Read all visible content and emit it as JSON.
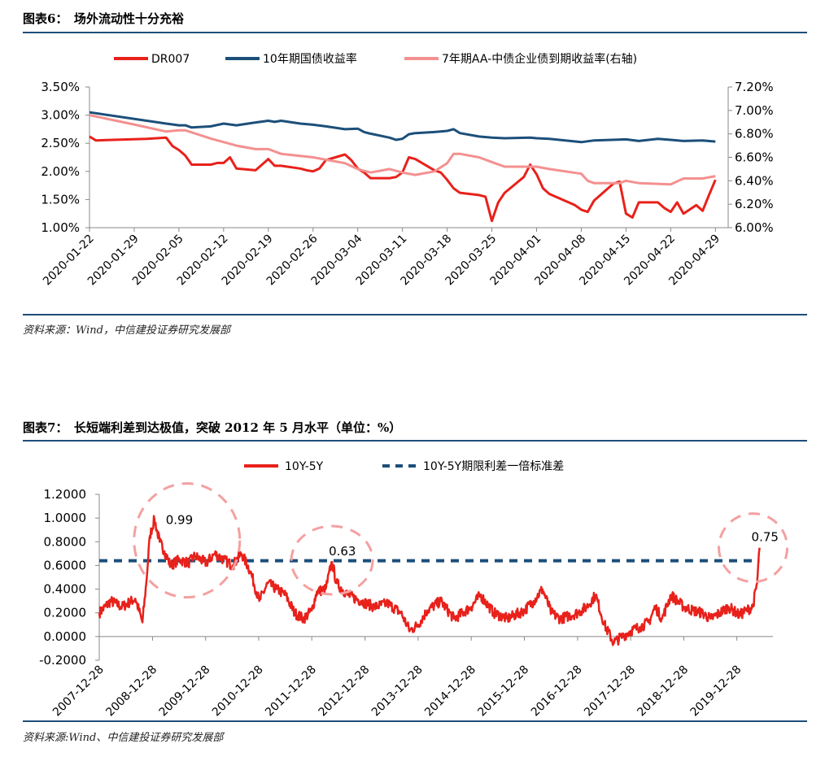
{
  "figure1": {
    "caption": "图表6：　场外流动性十分充裕",
    "source": "资料来源：Wind，中信建投证券研究发展部"
  },
  "figure2": {
    "caption": "图表7：　长短端利差到达极值，突破 2012 年 5 月水平（单位：%）",
    "source": "资料来源:Wind、中信建投证券研究发展部"
  },
  "chart_data": [
    {
      "type": "line",
      "title": "",
      "x_labels": [
        "2020-01-22",
        "2020-01-29",
        "2020-02-05",
        "2020-02-12",
        "2020-02-19",
        "2020-02-26",
        "2020-03-04",
        "2020-03-11",
        "2020-03-18",
        "2020-03-25",
        "2020-04-01",
        "2020-04-08",
        "2020-04-15",
        "2020-04-22",
        "2020-04-29"
      ],
      "x_range": [
        "2020-01-22",
        "2020-05-01"
      ],
      "y_left": {
        "min": 1.0,
        "max": 3.5,
        "ticks": [
          "1.00%",
          "1.50%",
          "2.00%",
          "2.50%",
          "3.00%",
          "3.50%"
        ]
      },
      "y_right": {
        "min": 6.0,
        "max": 7.2,
        "ticks": [
          "6.00%",
          "6.20%",
          "6.40%",
          "6.60%",
          "6.80%",
          "7.00%",
          "7.20%"
        ]
      },
      "legend_position": "top",
      "grid": false,
      "series": [
        {
          "name": "DR007",
          "axis": "left",
          "color": "#e8211b",
          "points": [
            [
              "2020-01-22",
              2.62
            ],
            [
              "2020-01-23",
              2.55
            ],
            [
              "2020-01-31",
              2.58
            ],
            [
              "2020-02-03",
              2.6
            ],
            [
              "2020-02-04",
              2.45
            ],
            [
              "2020-02-05",
              2.38
            ],
            [
              "2020-02-06",
              2.28
            ],
            [
              "2020-02-07",
              2.12
            ],
            [
              "2020-02-10",
              2.12
            ],
            [
              "2020-02-11",
              2.15
            ],
            [
              "2020-02-12",
              2.15
            ],
            [
              "2020-02-13",
              2.25
            ],
            [
              "2020-02-14",
              2.05
            ],
            [
              "2020-02-17",
              2.02
            ],
            [
              "2020-02-18",
              2.12
            ],
            [
              "2020-02-19",
              2.22
            ],
            [
              "2020-02-20",
              2.1
            ],
            [
              "2020-02-21",
              2.1
            ],
            [
              "2020-02-24",
              2.05
            ],
            [
              "2020-02-25",
              2.02
            ],
            [
              "2020-02-26",
              2.0
            ],
            [
              "2020-02-27",
              2.05
            ],
            [
              "2020-02-28",
              2.2
            ],
            [
              "2020-03-02",
              2.3
            ],
            [
              "2020-03-03",
              2.2
            ],
            [
              "2020-03-04",
              2.05
            ],
            [
              "2020-03-05",
              1.98
            ],
            [
              "2020-03-06",
              1.88
            ],
            [
              "2020-03-09",
              1.88
            ],
            [
              "2020-03-10",
              1.9
            ],
            [
              "2020-03-11",
              1.98
            ],
            [
              "2020-03-12",
              2.25
            ],
            [
              "2020-03-13",
              2.22
            ],
            [
              "2020-03-16",
              2.02
            ],
            [
              "2020-03-17",
              1.98
            ],
            [
              "2020-03-18",
              1.85
            ],
            [
              "2020-03-19",
              1.7
            ],
            [
              "2020-03-20",
              1.62
            ],
            [
              "2020-03-23",
              1.58
            ],
            [
              "2020-03-24",
              1.55
            ],
            [
              "2020-03-25",
              1.12
            ],
            [
              "2020-03-26",
              1.45
            ],
            [
              "2020-03-27",
              1.62
            ],
            [
              "2020-03-30",
              1.9
            ],
            [
              "2020-03-31",
              2.12
            ],
            [
              "2020-04-01",
              1.95
            ],
            [
              "2020-04-02",
              1.7
            ],
            [
              "2020-04-03",
              1.6
            ],
            [
              "2020-04-07",
              1.4
            ],
            [
              "2020-04-08",
              1.32
            ],
            [
              "2020-04-09",
              1.28
            ],
            [
              "2020-04-10",
              1.48
            ],
            [
              "2020-04-13",
              1.78
            ],
            [
              "2020-04-14",
              1.82
            ],
            [
              "2020-04-15",
              1.25
            ],
            [
              "2020-04-16",
              1.18
            ],
            [
              "2020-04-17",
              1.45
            ],
            [
              "2020-04-20",
              1.45
            ],
            [
              "2020-04-21",
              1.35
            ],
            [
              "2020-04-22",
              1.28
            ],
            [
              "2020-04-23",
              1.45
            ],
            [
              "2020-04-24",
              1.25
            ],
            [
              "2020-04-26",
              1.4
            ],
            [
              "2020-04-27",
              1.3
            ],
            [
              "2020-04-28",
              1.58
            ],
            [
              "2020-04-29",
              1.85
            ]
          ]
        },
        {
          "name": "10年期国债收益率",
          "axis": "left",
          "color": "#1c4f7a",
          "points": [
            [
              "2020-01-22",
              3.05
            ],
            [
              "2020-02-03",
              2.85
            ],
            [
              "2020-02-05",
              2.82
            ],
            [
              "2020-02-06",
              2.82
            ],
            [
              "2020-02-07",
              2.78
            ],
            [
              "2020-02-10",
              2.8
            ],
            [
              "2020-02-12",
              2.85
            ],
            [
              "2020-02-14",
              2.82
            ],
            [
              "2020-02-17",
              2.87
            ],
            [
              "2020-02-19",
              2.9
            ],
            [
              "2020-02-20",
              2.88
            ],
            [
              "2020-02-21",
              2.9
            ],
            [
              "2020-02-24",
              2.85
            ],
            [
              "2020-02-26",
              2.83
            ],
            [
              "2020-02-28",
              2.8
            ],
            [
              "2020-03-02",
              2.75
            ],
            [
              "2020-03-04",
              2.76
            ],
            [
              "2020-03-05",
              2.7
            ],
            [
              "2020-03-06",
              2.67
            ],
            [
              "2020-03-09",
              2.6
            ],
            [
              "2020-03-10",
              2.56
            ],
            [
              "2020-03-11",
              2.58
            ],
            [
              "2020-03-12",
              2.66
            ],
            [
              "2020-03-13",
              2.68
            ],
            [
              "2020-03-16",
              2.7
            ],
            [
              "2020-03-18",
              2.72
            ],
            [
              "2020-03-19",
              2.75
            ],
            [
              "2020-03-20",
              2.68
            ],
            [
              "2020-03-23",
              2.62
            ],
            [
              "2020-03-25",
              2.6
            ],
            [
              "2020-03-27",
              2.59
            ],
            [
              "2020-03-31",
              2.6
            ],
            [
              "2020-04-01",
              2.59
            ],
            [
              "2020-04-03",
              2.58
            ],
            [
              "2020-04-08",
              2.52
            ],
            [
              "2020-04-10",
              2.55
            ],
            [
              "2020-04-15",
              2.57
            ],
            [
              "2020-04-17",
              2.54
            ],
            [
              "2020-04-20",
              2.58
            ],
            [
              "2020-04-22",
              2.56
            ],
            [
              "2020-04-24",
              2.54
            ],
            [
              "2020-04-27",
              2.55
            ],
            [
              "2020-04-29",
              2.53
            ]
          ]
        },
        {
          "name": "7年期AA-中债企业债到期收益率(右轴)",
          "axis": "right",
          "color": "#f49090",
          "points": [
            [
              "2020-01-22",
              6.96
            ],
            [
              "2020-01-29",
              6.88
            ],
            [
              "2020-02-03",
              6.82
            ],
            [
              "2020-02-05",
              6.83
            ],
            [
              "2020-02-06",
              6.83
            ],
            [
              "2020-02-10",
              6.76
            ],
            [
              "2020-02-14",
              6.7
            ],
            [
              "2020-02-17",
              6.67
            ],
            [
              "2020-02-19",
              6.67
            ],
            [
              "2020-02-21",
              6.63
            ],
            [
              "2020-02-26",
              6.6
            ],
            [
              "2020-03-02",
              6.55
            ],
            [
              "2020-03-04",
              6.5
            ],
            [
              "2020-03-06",
              6.47
            ],
            [
              "2020-03-09",
              6.5
            ],
            [
              "2020-03-11",
              6.47
            ],
            [
              "2020-03-13",
              6.45
            ],
            [
              "2020-03-16",
              6.48
            ],
            [
              "2020-03-18",
              6.55
            ],
            [
              "2020-03-19",
              6.63
            ],
            [
              "2020-03-20",
              6.63
            ],
            [
              "2020-03-23",
              6.6
            ],
            [
              "2020-03-25",
              6.56
            ],
            [
              "2020-03-27",
              6.52
            ],
            [
              "2020-04-01",
              6.52
            ],
            [
              "2020-04-03",
              6.5
            ],
            [
              "2020-04-08",
              6.46
            ],
            [
              "2020-04-09",
              6.4
            ],
            [
              "2020-04-10",
              6.38
            ],
            [
              "2020-04-14",
              6.38
            ],
            [
              "2020-04-15",
              6.4
            ],
            [
              "2020-04-17",
              6.38
            ],
            [
              "2020-04-22",
              6.37
            ],
            [
              "2020-04-24",
              6.42
            ],
            [
              "2020-04-27",
              6.42
            ],
            [
              "2020-04-29",
              6.44
            ]
          ]
        }
      ]
    },
    {
      "type": "line",
      "title": "",
      "x_labels": [
        "2007-12-28",
        "2008-12-28",
        "2009-12-28",
        "2010-12-28",
        "2011-12-28",
        "2012-12-28",
        "2013-12-28",
        "2014-12-28",
        "2015-12-28",
        "2016-12-28",
        "2017-12-28",
        "2018-12-28",
        "2019-12-28"
      ],
      "x_range": [
        "2007-12-28",
        "2020-09-01"
      ],
      "y": {
        "min": -0.2,
        "max": 1.2,
        "ticks": [
          "-0.2000",
          "0.0000",
          "0.2000",
          "0.4000",
          "0.6000",
          "0.8000",
          "1.0000",
          "1.2000"
        ]
      },
      "legend_position": "top",
      "grid": false,
      "series": [
        {
          "name": "10Y-5Y",
          "color": "#e8211b",
          "points": [
            [
              "2007-12-28",
              0.2
            ],
            [
              "2008-03-15",
              0.3
            ],
            [
              "2008-06-01",
              0.25
            ],
            [
              "2008-09-01",
              0.32
            ],
            [
              "2008-10-20",
              0.12
            ],
            [
              "2008-11-15",
              0.45
            ],
            [
              "2008-12-10",
              0.85
            ],
            [
              "2009-01-10",
              0.99
            ],
            [
              "2009-02-15",
              0.8
            ],
            [
              "2009-03-20",
              0.72
            ],
            [
              "2009-05-01",
              0.6
            ],
            [
              "2009-07-01",
              0.65
            ],
            [
              "2009-09-01",
              0.62
            ],
            [
              "2009-10-15",
              0.68
            ],
            [
              "2010-01-01",
              0.62
            ],
            [
              "2010-03-01",
              0.7
            ],
            [
              "2010-05-01",
              0.65
            ],
            [
              "2010-07-01",
              0.6
            ],
            [
              "2010-09-01",
              0.7
            ],
            [
              "2010-11-01",
              0.55
            ],
            [
              "2011-01-01",
              0.3
            ],
            [
              "2011-03-01",
              0.45
            ],
            [
              "2011-05-01",
              0.4
            ],
            [
              "2011-07-01",
              0.35
            ],
            [
              "2011-09-01",
              0.2
            ],
            [
              "2011-11-01",
              0.15
            ],
            [
              "2011-12-28",
              0.22
            ],
            [
              "2012-02-01",
              0.38
            ],
            [
              "2012-04-01",
              0.4
            ],
            [
              "2012-05-15",
              0.63
            ],
            [
              "2012-06-15",
              0.45
            ],
            [
              "2012-09-01",
              0.35
            ],
            [
              "2012-12-01",
              0.3
            ],
            [
              "2013-03-01",
              0.25
            ],
            [
              "2013-06-01",
              0.28
            ],
            [
              "2013-09-01",
              0.2
            ],
            [
              "2013-11-01",
              0.05
            ],
            [
              "2013-12-28",
              0.1
            ],
            [
              "2014-03-01",
              0.22
            ],
            [
              "2014-06-01",
              0.3
            ],
            [
              "2014-09-01",
              0.15
            ],
            [
              "2014-12-28",
              0.25
            ],
            [
              "2015-03-01",
              0.35
            ],
            [
              "2015-06-01",
              0.2
            ],
            [
              "2015-09-01",
              0.15
            ],
            [
              "2015-12-28",
              0.22
            ],
            [
              "2016-03-01",
              0.3
            ],
            [
              "2016-05-01",
              0.4
            ],
            [
              "2016-07-01",
              0.2
            ],
            [
              "2016-09-01",
              0.15
            ],
            [
              "2016-12-28",
              0.2
            ],
            [
              "2017-03-01",
              0.25
            ],
            [
              "2017-05-01",
              0.35
            ],
            [
              "2017-07-01",
              0.1
            ],
            [
              "2017-09-01",
              -0.05
            ],
            [
              "2017-11-01",
              0.0
            ],
            [
              "2018-01-01",
              0.05
            ],
            [
              "2018-03-01",
              0.08
            ],
            [
              "2018-05-01",
              0.12
            ],
            [
              "2018-06-15",
              0.25
            ],
            [
              "2018-08-01",
              0.15
            ],
            [
              "2018-10-01",
              0.35
            ],
            [
              "2018-12-28",
              0.25
            ],
            [
              "2019-03-01",
              0.22
            ],
            [
              "2019-05-01",
              0.2
            ],
            [
              "2019-07-01",
              0.15
            ],
            [
              "2019-09-01",
              0.2
            ],
            [
              "2019-11-01",
              0.25
            ],
            [
              "2020-01-15",
              0.18
            ],
            [
              "2020-03-01",
              0.22
            ],
            [
              "2020-04-15",
              0.25
            ],
            [
              "2020-05-15",
              0.45
            ],
            [
              "2020-06-01",
              0.75
            ]
          ]
        },
        {
          "name": "10Y-5Y期限利差一倍标准差",
          "color": "#1c4f7a",
          "style": "dashed",
          "points": [
            [
              "2007-12-28",
              0.64
            ],
            [
              "2020-06-01",
              0.64
            ]
          ]
        }
      ],
      "annotations": [
        {
          "text": "0.99",
          "x": "2009-01-10",
          "y": 0.99
        },
        {
          "text": "0.63",
          "x": "2012-05-15",
          "y": 0.63
        },
        {
          "text": "0.75",
          "x": "2020-06-01",
          "y": 0.75
        }
      ]
    }
  ]
}
